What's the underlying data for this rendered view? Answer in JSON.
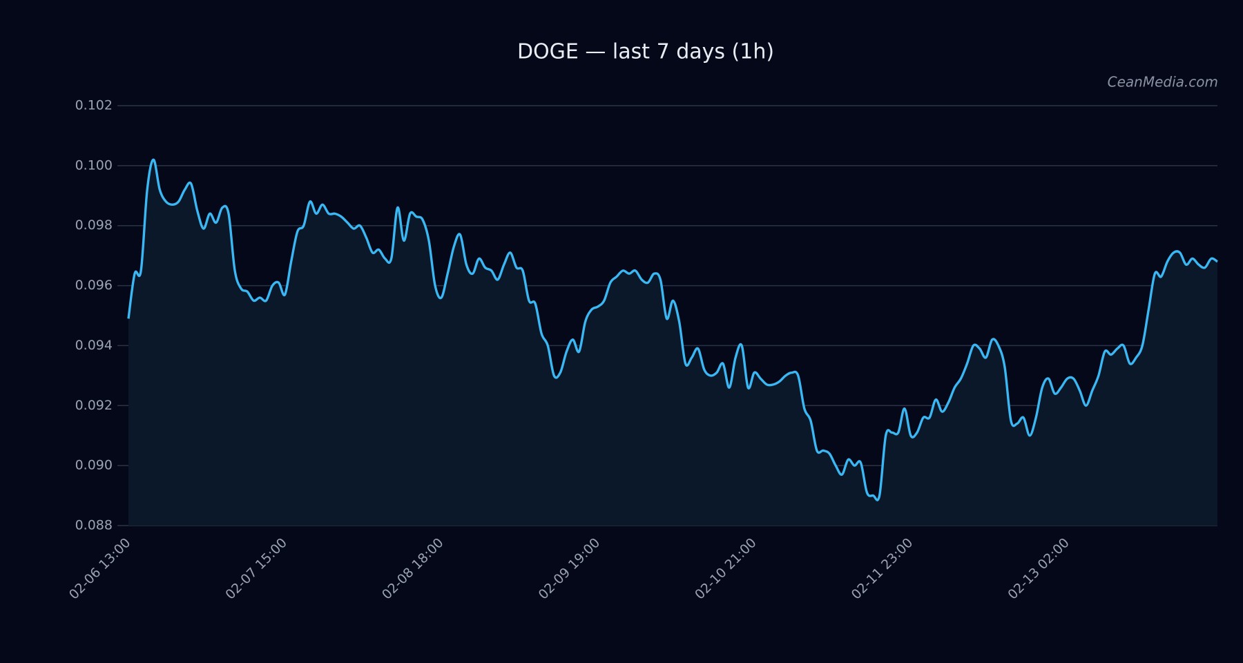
{
  "chart_data": {
    "type": "line",
    "title": "DOGE — last 7 days (1h)",
    "source": "CeanMedia.com",
    "categories": [
      "02-06 13:00",
      null,
      null,
      null,
      null,
      null,
      null,
      null,
      null,
      null,
      null,
      null,
      null,
      null,
      null,
      null,
      null,
      null,
      null,
      null,
      null,
      null,
      null,
      null,
      null,
      "02-07 15:00",
      null,
      null,
      null,
      null,
      null,
      null,
      null,
      null,
      null,
      null,
      null,
      null,
      null,
      null,
      null,
      null,
      null,
      null,
      null,
      null,
      null,
      null,
      null,
      null,
      "02-08 18:00",
      null,
      null,
      null,
      null,
      null,
      null,
      null,
      null,
      null,
      null,
      null,
      null,
      null,
      null,
      null,
      null,
      null,
      null,
      null,
      null,
      null,
      null,
      null,
      null,
      "02-09 19:00",
      null,
      null,
      null,
      null,
      null,
      null,
      null,
      null,
      null,
      null,
      null,
      null,
      null,
      null,
      null,
      null,
      null,
      null,
      null,
      null,
      null,
      null,
      null,
      null,
      "02-10 21:00",
      null,
      null,
      null,
      null,
      null,
      null,
      null,
      null,
      null,
      null,
      null,
      null,
      null,
      null,
      null,
      null,
      null,
      null,
      null,
      null,
      null,
      null,
      null,
      null,
      "02-11 23:00",
      null,
      null,
      null,
      null,
      null,
      null,
      null,
      null,
      null,
      null,
      null,
      null,
      null,
      null,
      null,
      null,
      null,
      null,
      null,
      null,
      null,
      null,
      null,
      null,
      "02-13 02:00",
      null,
      null,
      null,
      null,
      null,
      null,
      null,
      null,
      null,
      null,
      null,
      null,
      null,
      null,
      null,
      null,
      null,
      null,
      null,
      null,
      null,
      null,
      null,
      null
    ],
    "values": [
      0.0949,
      0.0964,
      0.0965,
      0.0992,
      0.1002,
      0.0992,
      0.0988,
      0.0987,
      0.0988,
      0.0992,
      0.0994,
      0.0985,
      0.0979,
      0.0984,
      0.0981,
      0.0986,
      0.0984,
      0.0965,
      0.0959,
      0.0958,
      0.0955,
      0.0956,
      0.0955,
      0.096,
      0.0961,
      0.0957,
      0.0968,
      0.0978,
      0.098,
      0.0988,
      0.0984,
      0.0987,
      0.0984,
      0.0984,
      0.0983,
      0.0981,
      0.0979,
      0.098,
      0.0976,
      0.0971,
      0.0972,
      0.0969,
      0.0969,
      0.0986,
      0.0975,
      0.0984,
      0.0983,
      0.0982,
      0.0975,
      0.096,
      0.0956,
      0.0964,
      0.0973,
      0.0977,
      0.0967,
      0.0964,
      0.0969,
      0.0966,
      0.0965,
      0.0962,
      0.0967,
      0.0971,
      0.0966,
      0.0965,
      0.0955,
      0.0954,
      0.0944,
      0.094,
      0.093,
      0.0931,
      0.0938,
      0.0942,
      0.0938,
      0.0948,
      0.0952,
      0.0953,
      0.0955,
      0.0961,
      0.0963,
      0.0965,
      0.0964,
      0.0965,
      0.0962,
      0.0961,
      0.0964,
      0.0962,
      0.0949,
      0.0955,
      0.0948,
      0.0934,
      0.0936,
      0.0939,
      0.0932,
      0.093,
      0.0931,
      0.0934,
      0.0926,
      0.0936,
      0.094,
      0.0926,
      0.0931,
      0.0929,
      0.0927,
      0.0927,
      0.0928,
      0.093,
      0.0931,
      0.093,
      0.0919,
      0.0915,
      0.0905,
      0.0905,
      0.0904,
      0.09,
      0.0897,
      0.0902,
      0.09,
      0.0901,
      0.0891,
      0.089,
      0.089,
      0.091,
      0.0911,
      0.0911,
      0.0919,
      0.091,
      0.0911,
      0.0916,
      0.0916,
      0.0922,
      0.0918,
      0.0921,
      0.0926,
      0.0929,
      0.0934,
      0.094,
      0.0939,
      0.0936,
      0.0942,
      0.094,
      0.0933,
      0.0915,
      0.0914,
      0.0916,
      0.091,
      0.0916,
      0.0926,
      0.0929,
      0.0924,
      0.0926,
      0.0929,
      0.0929,
      0.0925,
      0.092,
      0.0925,
      0.093,
      0.0938,
      0.0937,
      0.0939,
      0.094,
      0.0934,
      0.0936,
      0.094,
      0.0952,
      0.0964,
      0.0963,
      0.0968,
      0.0971,
      0.0971,
      0.0967,
      0.0969,
      0.0967,
      0.0966,
      0.0969,
      0.0968
    ],
    "color": "#3bb7f3",
    "fill": "#0a1829",
    "ylim": [
      0.088,
      0.102
    ],
    "yticks": [
      0.088,
      {
        "value": 0.09,
        "label": "0.090"
      },
      0.092,
      0.094,
      0.096,
      0.098,
      {
        "value": 0.1,
        "label": "0.100"
      },
      0.102
    ],
    "grid": true
  }
}
